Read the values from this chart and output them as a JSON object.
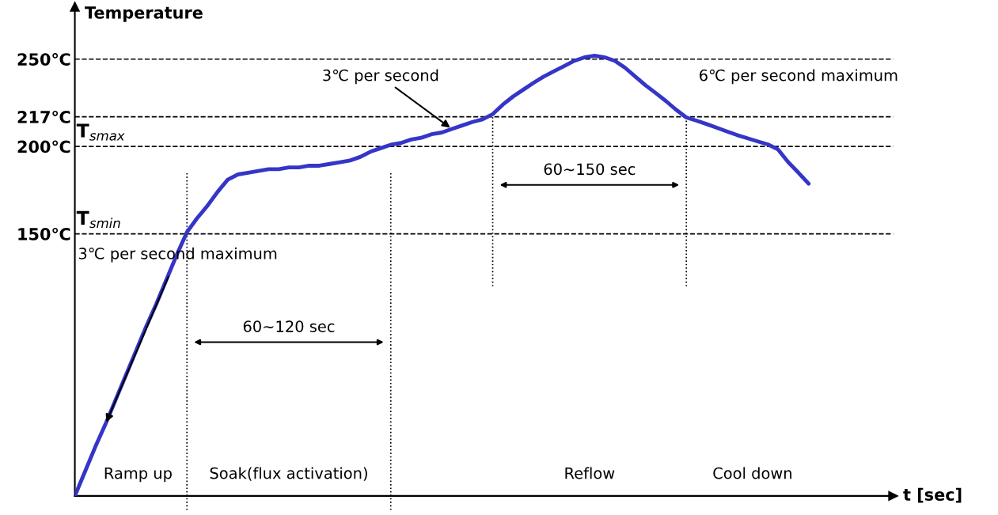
{
  "chart_data": {
    "type": "line",
    "ylabel": "Temperature",
    "categories": [
      null,
      null,
      null,
      null,
      null,
      null,
      null,
      null,
      null,
      null,
      null,
      null,
      null,
      null,
      null,
      null,
      null,
      null,
      null,
      null,
      null,
      null,
      null,
      null,
      null,
      null,
      null,
      null,
      null,
      null,
      null,
      null,
      null,
      null,
      null,
      null,
      null,
      null,
      null,
      null,
      null,
      null,
      null,
      null,
      null,
      null,
      null,
      null,
      null,
      null,
      null,
      null,
      null,
      null,
      null,
      null,
      null,
      null,
      null,
      null,
      null,
      null,
      null,
      null,
      null,
      null,
      null,
      null,
      null,
      null,
      null,
      null,
      null
    ],
    "series": [
      {
        "color": "#3535c8",
        "values": [
          0,
          14,
          28,
          41,
          55,
          69,
          83,
          97,
          110,
          124,
          138,
          151,
          159,
          166,
          174,
          181,
          184,
          185,
          186,
          187,
          187,
          188,
          188,
          189,
          189,
          190,
          191,
          192,
          194,
          197,
          199,
          201,
          202,
          204,
          205,
          207,
          208,
          210,
          212,
          214,
          215.5,
          218.5,
          224,
          228.6,
          232.5,
          236.4,
          240,
          243,
          246,
          249,
          251,
          252,
          251,
          249,
          245,
          240,
          235,
          230.6,
          226,
          221,
          216.6,
          214.8,
          212.8,
          210.7,
          208.6,
          206.5,
          204.7,
          202.9,
          201.2,
          198.3,
          191,
          185,
          178.7
        ]
      }
    ],
    "ylim": [
      0,
      280
    ],
    "yticks": [
      {
        "value": 150,
        "label": "150℃"
      },
      {
        "value": 200,
        "label": "200℃"
      },
      {
        "value": 217,
        "label": "217℃"
      },
      {
        "value": 250,
        "label": "250℃"
      }
    ],
    "tick_labels": "y",
    "ref_lines": [
      {
        "axis": "y",
        "value": 250,
        "color": "#000000",
        "line_style": "dashed"
      },
      {
        "axis": "y",
        "value": 217,
        "color": "#000000",
        "line_style": "dashed"
      },
      {
        "axis": "y",
        "value": 200,
        "color": "#000000",
        "line_style": "dashed"
      },
      {
        "axis": "y",
        "value": 150,
        "color": "#000000",
        "line_style": "dashed"
      }
    ],
    "annotations": [
      {
        "text": "T$_{smax}$",
        "y": 200
      },
      {
        "text": "T$_{smin}$",
        "y": 150
      },
      "3℃ per second maximum",
      "3℃ per second",
      "6℃ per second maximum",
      "60~120 sec",
      "60~150 sec",
      "Ramp up",
      "Soak(flux activation)",
      "Reflow",
      "Cool down",
      "t [sec]"
    ],
    "grid": false,
    "legend": false,
    "marker": "none",
    "line_style": "solid"
  }
}
